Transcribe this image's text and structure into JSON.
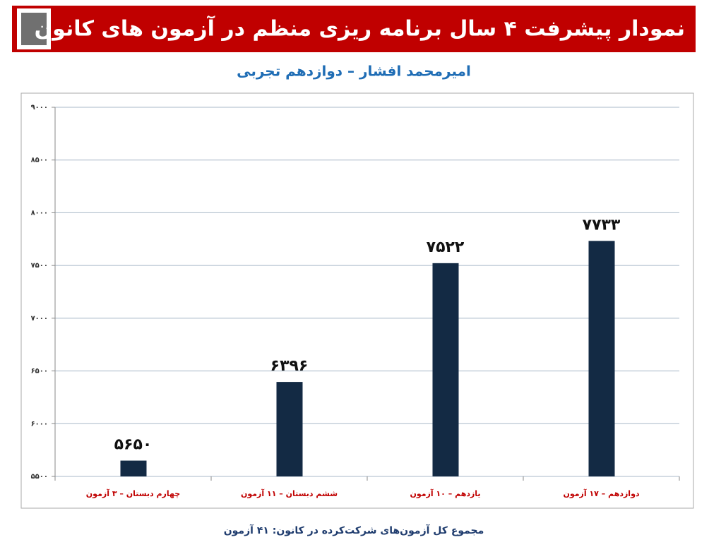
{
  "chart_data": {
    "type": "bar",
    "title": "نمودار پیشرفت ۴ سال برنامه ریزی منظم در آزمون های کانون",
    "subtitle": "امیرمحمد افشار – دوازدهم تجربی",
    "footer": "مجموع کل آزمون‌های شرکت‌کرده در کانون: ۴۱ آزمون",
    "categories": [
      "چهارم دبستان – ۳ آزمون",
      "ششم دبستان – ۱۱ آزمون",
      "یازدهم – ۱۰ آزمون",
      "دوازدهم – ۱۷ آزمون"
    ],
    "values": [
      5650,
      6396,
      7522,
      7733
    ],
    "value_labels": [
      "۵۶۵۰",
      "۶۳۹۶",
      "۷۵۲۲",
      "۷۷۳۳"
    ],
    "color": "#132a44",
    "ylim": [
      5500,
      9000
    ],
    "yticks": [
      {
        "value": 5500,
        "label": "۵۵۰۰"
      },
      {
        "value": 6000,
        "label": "۶۰۰۰"
      },
      {
        "value": 6500,
        "label": "۶۵۰۰"
      },
      {
        "value": 7000,
        "label": "۷۰۰۰"
      },
      {
        "value": 7500,
        "label": "۷۵۰۰"
      },
      {
        "value": 8000,
        "label": "۸۰۰۰"
      },
      {
        "value": 8500,
        "label": "۸۵۰۰"
      },
      {
        "value": 9000,
        "label": "۹۰۰۰"
      }
    ],
    "grid": true
  }
}
